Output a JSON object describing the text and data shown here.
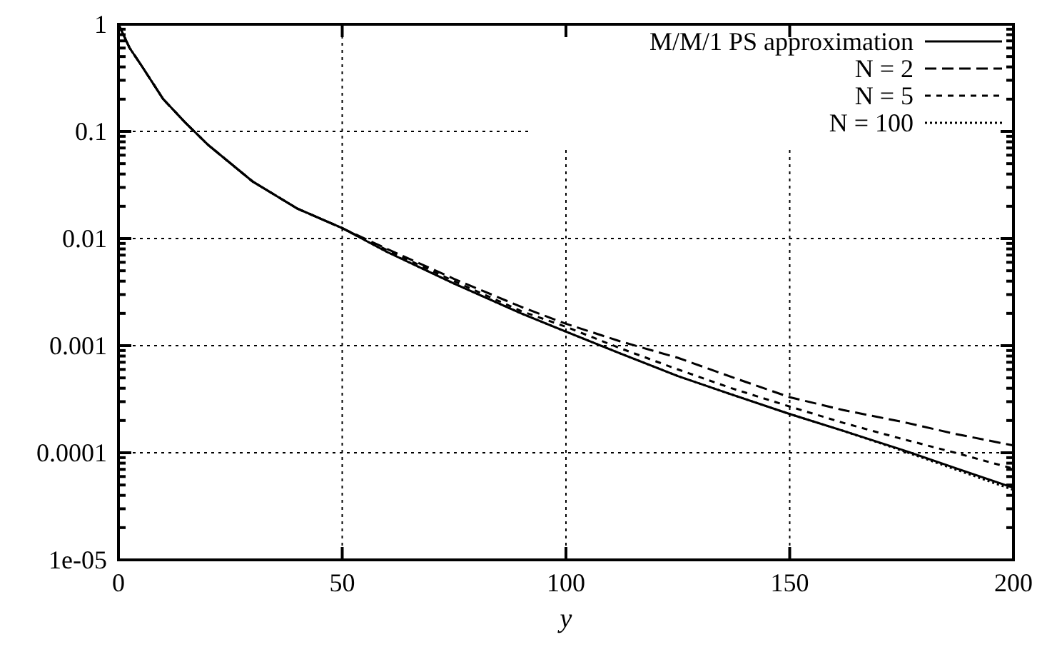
{
  "chart_data": {
    "type": "line",
    "xlabel": "y",
    "log": "y",
    "grid": true,
    "legend": "top right",
    "xlim": [
      0,
      200
    ],
    "xticks": [
      0,
      50,
      100,
      150,
      200
    ],
    "ylim": [
      1e-05,
      1
    ],
    "yticks": [
      {
        "value": 1e-05,
        "label": "1e-05"
      },
      {
        "value": 0.0001,
        "label": "0.0001"
      },
      {
        "value": 0.001,
        "label": "0.001"
      },
      {
        "value": 0.01,
        "label": "0.01"
      },
      {
        "value": 0.1,
        "label": "0.1"
      },
      {
        "value": 1,
        "label": "1"
      }
    ],
    "x": [
      0,
      2.5,
      5,
      10,
      15,
      20,
      30,
      40,
      50,
      60,
      75,
      90,
      100,
      112,
      125,
      137,
      150,
      162,
      175,
      187,
      200
    ],
    "series": [
      {
        "name": "M/M/1 PS approximation",
        "color": "#000000",
        "line_style": "solid",
        "values": [
          1,
          0.6,
          0.42,
          0.2,
          0.12,
          0.075,
          0.034,
          0.019,
          0.0125,
          0.0075,
          0.0038,
          0.002,
          0.00135,
          0.00085,
          0.00052,
          0.00035,
          0.00023,
          0.00016,
          0.000107,
          7.2e-05,
          4.7e-05
        ]
      },
      {
        "name": "N = 2",
        "color": "#000000",
        "line_style": "dashed",
        "values": [
          1,
          0.6,
          0.42,
          0.2,
          0.12,
          0.075,
          0.034,
          0.019,
          0.0125,
          0.008,
          0.0042,
          0.0023,
          0.0016,
          0.0011,
          0.00077,
          0.00051,
          0.00033,
          0.00025,
          0.000195,
          0.00015,
          0.000117
        ]
      },
      {
        "name": "N = 5",
        "color": "#000000",
        "line_style": "short-dashed",
        "values": [
          1,
          0.6,
          0.42,
          0.2,
          0.12,
          0.075,
          0.034,
          0.019,
          0.0125,
          0.0078,
          0.004,
          0.0021,
          0.0015,
          0.00095,
          0.0006,
          0.0004,
          0.00027,
          0.00019,
          0.000135,
          0.0001,
          7.1e-05
        ]
      },
      {
        "name": "N = 100",
        "color": "#000000",
        "line_style": "dotted",
        "values": [
          1,
          0.6,
          0.42,
          0.2,
          0.12,
          0.075,
          0.034,
          0.019,
          0.0125,
          0.0075,
          0.0038,
          0.002,
          0.00135,
          0.00085,
          0.00052,
          0.00035,
          0.00023,
          0.00016,
          0.000105,
          7e-05,
          4.5e-05
        ]
      }
    ]
  }
}
